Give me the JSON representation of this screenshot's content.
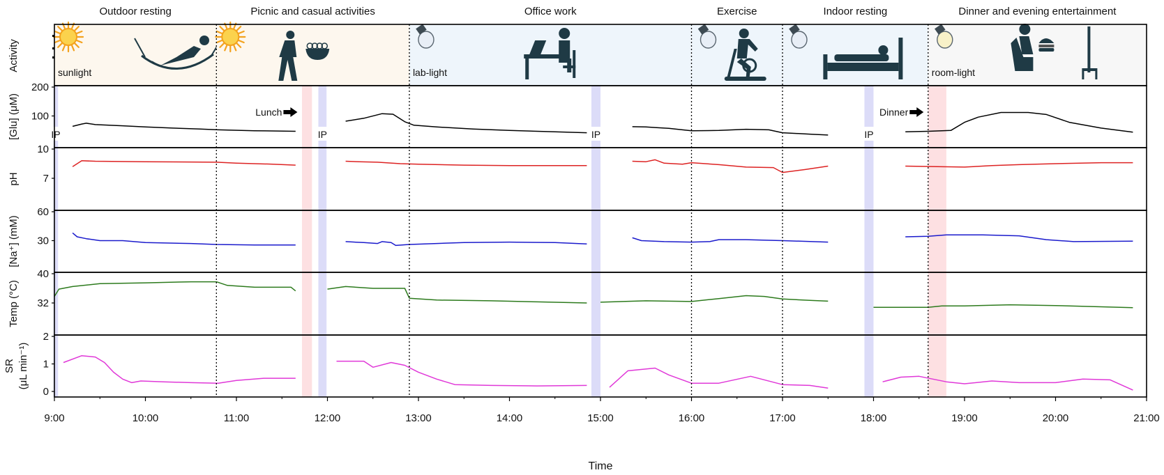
{
  "chart_data": {
    "type": "line",
    "xlabel": "Time",
    "xlim": [
      9.0,
      21.0
    ],
    "x_tick_labels": [
      "9:00",
      "10:00",
      "11:00",
      "12:00",
      "13:00",
      "14:00",
      "15:00",
      "16:00",
      "17:00",
      "18:00",
      "19:00",
      "20:00",
      "21:00"
    ],
    "x_tick_hours": [
      9,
      10,
      11,
      12,
      13,
      14,
      15,
      16,
      17,
      18,
      19,
      20,
      21
    ],
    "activities": [
      {
        "label": "Outdoor resting",
        "start": 9.0,
        "end": 10.78,
        "light": "sunlight",
        "light_icon": "sun-icon",
        "person_icon": "hammock-person-icon",
        "bg": "#fdf7ee"
      },
      {
        "label": "Picnic and casual activities",
        "start": 10.78,
        "end": 12.9,
        "light": "",
        "light_icon": "sun-icon",
        "person_icon": "walking-person-icon",
        "bg": "#fdf7ee"
      },
      {
        "label": "Office work",
        "start": 12.9,
        "end": 16.0,
        "light": "lab-light",
        "light_icon": "lightbulb-icon",
        "person_icon": "desk-person-icon",
        "bg": "#eef5fb"
      },
      {
        "label": "Exercise",
        "start": 16.0,
        "end": 17.0,
        "light": "",
        "light_icon": "lightbulb-icon",
        "person_icon": "exercise-bike-icon",
        "bg": "#eef5fb"
      },
      {
        "label": "Indoor resting",
        "start": 17.0,
        "end": 18.6,
        "light": "",
        "light_icon": "lightbulb-icon",
        "person_icon": "bed-person-icon",
        "bg": "#eef5fb"
      },
      {
        "label": "Dinner and evening entertainment",
        "start": 18.6,
        "end": 21.0,
        "light": "room-light",
        "light_icon": "lightbulb-icon",
        "person_icon": "dinner-tv-icon",
        "bg": "#f7f7f7"
      }
    ],
    "activity_ylabel": "Activity",
    "boundaries": [
      10.78,
      12.9,
      16.0,
      17.0,
      18.6
    ],
    "iontophoresis": {
      "label": "IP",
      "color": "#dcdcf8",
      "bands": [
        [
          8.99,
          9.04
        ],
        [
          11.9,
          11.99
        ],
        [
          14.9,
          15.0
        ],
        [
          17.9,
          18.0
        ]
      ],
      "label_panel": "glu"
    },
    "meals": {
      "color": "#fde0e2",
      "bands": [
        [
          11.72,
          11.83
        ],
        [
          18.6,
          18.8
        ]
      ],
      "labels": [
        {
          "text": "Lunch",
          "arrow_at": 11.67
        },
        {
          "text": "Dinner",
          "arrow_at": 18.55
        }
      ]
    },
    "panels": [
      {
        "id": "glu",
        "ylabel": "[Glu] (μM)",
        "ylim": [
          0,
          200
        ],
        "yticks": [
          100,
          200
        ],
        "color": "#000000",
        "segments": [
          [
            [
              9.2,
              64
            ],
            [
              9.3,
              72
            ],
            [
              9.35,
              75
            ],
            [
              9.45,
              70
            ],
            [
              9.6,
              68
            ],
            [
              9.75,
              66
            ],
            [
              10.0,
              62
            ],
            [
              10.3,
              58
            ],
            [
              10.6,
              55
            ],
            [
              10.8,
              52
            ],
            [
              11.2,
              49
            ],
            [
              11.65,
              47
            ]
          ],
          [
            [
              12.2,
              82
            ],
            [
              12.4,
              92
            ],
            [
              12.6,
              108
            ],
            [
              12.72,
              106
            ],
            [
              12.85,
              80
            ],
            [
              12.95,
              68
            ],
            [
              13.2,
              62
            ],
            [
              13.6,
              55
            ],
            [
              14.0,
              50
            ],
            [
              14.5,
              45
            ],
            [
              14.85,
              42
            ]
          ],
          [
            [
              15.35,
              63
            ],
            [
              15.5,
              62
            ],
            [
              15.6,
              60
            ],
            [
              15.75,
              57
            ],
            [
              15.9,
              52
            ],
            [
              16.0,
              49
            ],
            [
              16.3,
              50
            ],
            [
              16.6,
              54
            ],
            [
              16.85,
              52
            ],
            [
              17.0,
              42
            ],
            [
              17.3,
              37
            ],
            [
              17.5,
              34
            ]
          ],
          [
            [
              18.35,
              45
            ],
            [
              18.6,
              47
            ],
            [
              18.85,
              50
            ],
            [
              19.0,
              78
            ],
            [
              19.15,
              96
            ],
            [
              19.4,
              112
            ],
            [
              19.7,
              112
            ],
            [
              19.9,
              105
            ],
            [
              20.15,
              78
            ],
            [
              20.5,
              58
            ],
            [
              20.85,
              44
            ]
          ]
        ]
      },
      {
        "id": "ph",
        "ylabel": "pH",
        "ylim": [
          4,
          10
        ],
        "yticks": [
          7,
          10
        ],
        "color": "#dd2222",
        "segments": [
          [
            [
              9.2,
              8.2
            ],
            [
              9.3,
              8.8
            ],
            [
              9.45,
              8.75
            ],
            [
              10.0,
              8.7
            ],
            [
              10.78,
              8.65
            ],
            [
              11.0,
              8.55
            ],
            [
              11.4,
              8.45
            ],
            [
              11.65,
              8.35
            ]
          ],
          [
            [
              12.2,
              8.75
            ],
            [
              12.35,
              8.7
            ],
            [
              12.55,
              8.65
            ],
            [
              12.8,
              8.5
            ],
            [
              13.0,
              8.45
            ],
            [
              13.5,
              8.35
            ],
            [
              14.0,
              8.3
            ],
            [
              14.5,
              8.3
            ],
            [
              14.85,
              8.3
            ]
          ],
          [
            [
              15.35,
              8.75
            ],
            [
              15.5,
              8.7
            ],
            [
              15.6,
              8.9
            ],
            [
              15.7,
              8.55
            ],
            [
              15.9,
              8.45
            ],
            [
              16.0,
              8.6
            ],
            [
              16.3,
              8.4
            ],
            [
              16.6,
              8.15
            ],
            [
              16.9,
              8.1
            ],
            [
              17.0,
              7.6
            ],
            [
              17.25,
              7.9
            ],
            [
              17.5,
              8.25
            ]
          ],
          [
            [
              18.35,
              8.25
            ],
            [
              18.7,
              8.2
            ],
            [
              19.0,
              8.15
            ],
            [
              19.3,
              8.3
            ],
            [
              19.6,
              8.4
            ],
            [
              20.0,
              8.5
            ],
            [
              20.5,
              8.6
            ],
            [
              20.85,
              8.6
            ]
          ]
        ]
      },
      {
        "id": "na",
        "ylabel": "[Na⁺] (mM)",
        "ylim": [
          0,
          60
        ],
        "yticks": [
          30,
          60
        ],
        "color": "#1a1acc",
        "segments": [
          [
            [
              9.2,
              38
            ],
            [
              9.25,
              34
            ],
            [
              9.35,
              32
            ],
            [
              9.5,
              30
            ],
            [
              9.75,
              30
            ],
            [
              10.0,
              28
            ],
            [
              10.5,
              27
            ],
            [
              10.78,
              26
            ],
            [
              11.2,
              25.5
            ],
            [
              11.65,
              25.5
            ]
          ],
          [
            [
              12.2,
              29
            ],
            [
              12.4,
              28
            ],
            [
              12.55,
              27
            ],
            [
              12.6,
              29
            ],
            [
              12.7,
              28
            ],
            [
              12.75,
              25
            ],
            [
              12.9,
              26
            ],
            [
              13.2,
              27
            ],
            [
              13.5,
              28
            ],
            [
              14.0,
              28.5
            ],
            [
              14.5,
              28
            ],
            [
              14.85,
              26.5
            ]
          ],
          [
            [
              15.35,
              33
            ],
            [
              15.45,
              30
            ],
            [
              15.7,
              29
            ],
            [
              16.0,
              28.5
            ],
            [
              16.2,
              29
            ],
            [
              16.3,
              31
            ],
            [
              16.6,
              31
            ],
            [
              17.0,
              30
            ],
            [
              17.5,
              28.5
            ]
          ],
          [
            [
              18.35,
              34
            ],
            [
              18.6,
              34.5
            ],
            [
              18.8,
              36
            ],
            [
              19.2,
              36
            ],
            [
              19.6,
              35
            ],
            [
              19.9,
              31
            ],
            [
              20.2,
              29
            ],
            [
              20.85,
              29.5
            ]
          ]
        ]
      },
      {
        "id": "temp",
        "ylabel": "Temp (°C)",
        "ylim": [
          24,
          40
        ],
        "yticks": [
          32,
          40
        ],
        "color": "#2c7a1c",
        "segments": [
          [
            [
              9.0,
              33.8
            ],
            [
              9.05,
              35.8
            ],
            [
              9.2,
              36.5
            ],
            [
              9.5,
              37.3
            ],
            [
              10.0,
              37.5
            ],
            [
              10.5,
              37.8
            ],
            [
              10.78,
              37.8
            ],
            [
              10.9,
              36.8
            ],
            [
              11.2,
              36.3
            ],
            [
              11.6,
              36.3
            ],
            [
              11.65,
              35.3
            ]
          ],
          [
            [
              12.0,
              35.8
            ],
            [
              12.2,
              36.5
            ],
            [
              12.5,
              36
            ],
            [
              12.85,
              36
            ],
            [
              12.9,
              33.3
            ],
            [
              13.2,
              32.8
            ],
            [
              13.8,
              32.6
            ],
            [
              14.3,
              32.3
            ],
            [
              14.85,
              32.0
            ]
          ],
          [
            [
              15.0,
              32.2
            ],
            [
              15.5,
              32.6
            ],
            [
              16.0,
              32.4
            ],
            [
              16.3,
              33.2
            ],
            [
              16.6,
              34
            ],
            [
              16.8,
              33.8
            ],
            [
              17.0,
              33.1
            ],
            [
              17.3,
              32.7
            ],
            [
              17.5,
              32.5
            ]
          ],
          [
            [
              18.0,
              30.8
            ],
            [
              18.6,
              30.8
            ],
            [
              18.75,
              31.2
            ],
            [
              19.0,
              31.2
            ],
            [
              19.5,
              31.5
            ],
            [
              20.0,
              31.3
            ],
            [
              20.85,
              30.7
            ]
          ]
        ]
      },
      {
        "id": "sr",
        "ylabel": "SR",
        "ylabel2": "(μL min⁻¹)",
        "ylim": [
          -0.1,
          2
        ],
        "yticks": [
          0,
          1,
          2
        ],
        "color": "#e038d8",
        "segments": [
          [
            [
              9.1,
              1.05
            ],
            [
              9.3,
              1.3
            ],
            [
              9.45,
              1.25
            ],
            [
              9.55,
              1.05
            ],
            [
              9.65,
              0.7
            ],
            [
              9.75,
              0.45
            ],
            [
              9.85,
              0.32
            ],
            [
              9.95,
              0.38
            ],
            [
              10.2,
              0.35
            ],
            [
              10.5,
              0.32
            ],
            [
              10.8,
              0.3
            ],
            [
              11.0,
              0.4
            ],
            [
              11.3,
              0.48
            ],
            [
              11.65,
              0.48
            ]
          ],
          [
            [
              12.1,
              1.1
            ],
            [
              12.4,
              1.1
            ],
            [
              12.5,
              0.88
            ],
            [
              12.7,
              1.05
            ],
            [
              12.85,
              0.95
            ],
            [
              13.0,
              0.7
            ],
            [
              13.2,
              0.45
            ],
            [
              13.4,
              0.25
            ],
            [
              13.8,
              0.22
            ],
            [
              14.3,
              0.2
            ],
            [
              14.85,
              0.22
            ]
          ],
          [
            [
              15.1,
              0.15
            ],
            [
              15.3,
              0.75
            ],
            [
              15.6,
              0.85
            ],
            [
              15.75,
              0.6
            ],
            [
              16.0,
              0.3
            ],
            [
              16.3,
              0.3
            ],
            [
              16.65,
              0.55
            ],
            [
              17.0,
              0.25
            ],
            [
              17.3,
              0.22
            ],
            [
              17.5,
              0.12
            ]
          ],
          [
            [
              18.1,
              0.35
            ],
            [
              18.3,
              0.52
            ],
            [
              18.5,
              0.55
            ],
            [
              18.8,
              0.35
            ],
            [
              19.0,
              0.28
            ],
            [
              19.3,
              0.38
            ],
            [
              19.6,
              0.32
            ],
            [
              20.0,
              0.32
            ],
            [
              20.3,
              0.45
            ],
            [
              20.6,
              0.42
            ],
            [
              20.85,
              0.05
            ]
          ]
        ]
      }
    ]
  }
}
